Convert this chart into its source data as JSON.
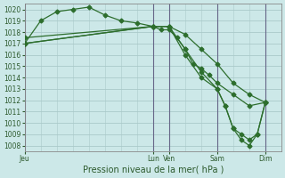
{
  "xlabel": "Pression niveau de la mer( hPa )",
  "bg_color": "#cce8e8",
  "grid_color": "#aacaca",
  "line_color": "#2d6e2d",
  "vline_color": "#666688",
  "ylim": [
    1007.5,
    1020.5
  ],
  "yticks": [
    1008,
    1009,
    1010,
    1011,
    1012,
    1013,
    1014,
    1015,
    1016,
    1017,
    1018,
    1019,
    1020
  ],
  "xlim": [
    0,
    96
  ],
  "xtick_positions": [
    0,
    48,
    54,
    72,
    90
  ],
  "xtick_labels": [
    "Jeu",
    "Lun",
    "Ven",
    "Sam",
    "Dim"
  ],
  "vline_positions": [
    0,
    48,
    54,
    72,
    90
  ],
  "line1_x": [
    0,
    6,
    12,
    18,
    24,
    30,
    36,
    42,
    48,
    51,
    54,
    57,
    60,
    63,
    66,
    69,
    72,
    78,
    84,
    90
  ],
  "line1_y": [
    1017.0,
    1019.0,
    1019.8,
    1020.0,
    1020.2,
    1019.5,
    1019.0,
    1018.8,
    1018.5,
    1018.2,
    1018.2,
    1017.5,
    1016.5,
    1015.2,
    1014.8,
    1014.2,
    1013.5,
    1012.5,
    1011.5,
    1011.8
  ],
  "line2_x": [
    0,
    48,
    54,
    60,
    66,
    72,
    78,
    84,
    90
  ],
  "line2_y": [
    1017.0,
    1018.5,
    1018.5,
    1017.8,
    1016.5,
    1015.2,
    1013.5,
    1012.5,
    1011.8
  ],
  "line3_x": [
    0,
    48,
    54,
    60,
    66,
    72,
    75,
    78,
    81,
    84,
    87,
    90
  ],
  "line3_y": [
    1017.0,
    1018.5,
    1018.5,
    1016.5,
    1014.5,
    1013.0,
    1011.5,
    1009.5,
    1009.0,
    1008.5,
    1009.0,
    1011.8
  ],
  "line4_x": [
    0,
    48,
    54,
    60,
    66,
    72,
    75,
    78,
    81,
    84,
    87,
    90
  ],
  "line4_y": [
    1017.5,
    1018.5,
    1018.5,
    1016.0,
    1014.0,
    1013.0,
    1011.5,
    1009.5,
    1008.5,
    1008.0,
    1009.0,
    1011.8
  ]
}
